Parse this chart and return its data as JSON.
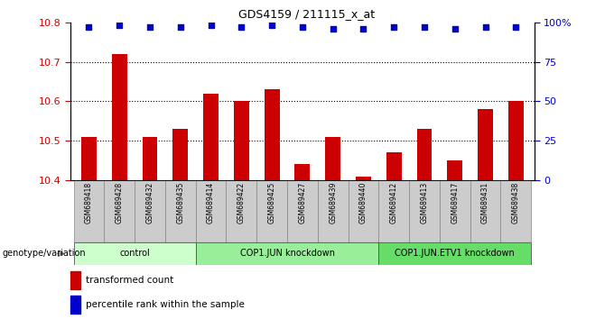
{
  "title": "GDS4159 / 211115_x_at",
  "samples": [
    "GSM689418",
    "GSM689428",
    "GSM689432",
    "GSM689435",
    "GSM689414",
    "GSM689422",
    "GSM689425",
    "GSM689427",
    "GSM689439",
    "GSM689440",
    "GSM689412",
    "GSM689413",
    "GSM689417",
    "GSM689431",
    "GSM689438"
  ],
  "bar_values": [
    10.51,
    10.72,
    10.51,
    10.53,
    10.62,
    10.6,
    10.63,
    10.44,
    10.51,
    10.41,
    10.47,
    10.53,
    10.45,
    10.58,
    10.6
  ],
  "percentile_values": [
    97,
    98,
    97,
    97,
    98,
    97,
    98,
    97,
    96,
    96,
    97,
    97,
    96,
    97,
    97
  ],
  "ylim_left": [
    10.4,
    10.8
  ],
  "ylim_right": [
    0,
    100
  ],
  "yticks_left": [
    10.4,
    10.5,
    10.6,
    10.7,
    10.8
  ],
  "yticks_right": [
    0,
    25,
    50,
    75,
    100
  ],
  "ytick_labels_right": [
    "0",
    "25",
    "50",
    "75",
    "100%"
  ],
  "bar_color": "#cc0000",
  "dot_color": "#0000cc",
  "groups": [
    {
      "label": "control",
      "start": 0,
      "end": 3
    },
    {
      "label": "COP1.JUN knockdown",
      "start": 4,
      "end": 9
    },
    {
      "label": "COP1.JUN.ETV1 knockdown",
      "start": 10,
      "end": 14
    }
  ],
  "group_colors": [
    "#ccffcc",
    "#99ee99",
    "#66dd66"
  ],
  "xlabel_row": "genotype/variation",
  "legend_bar_label": "transformed count",
  "legend_dot_label": "percentile rank within the sample",
  "tick_label_color_left": "#cc0000",
  "tick_label_color_right": "#0000cc",
  "bar_bottom": 10.4,
  "sample_box_color": "#cccccc",
  "sample_box_edge": "#888888",
  "grid_dotted_color": "#555555"
}
